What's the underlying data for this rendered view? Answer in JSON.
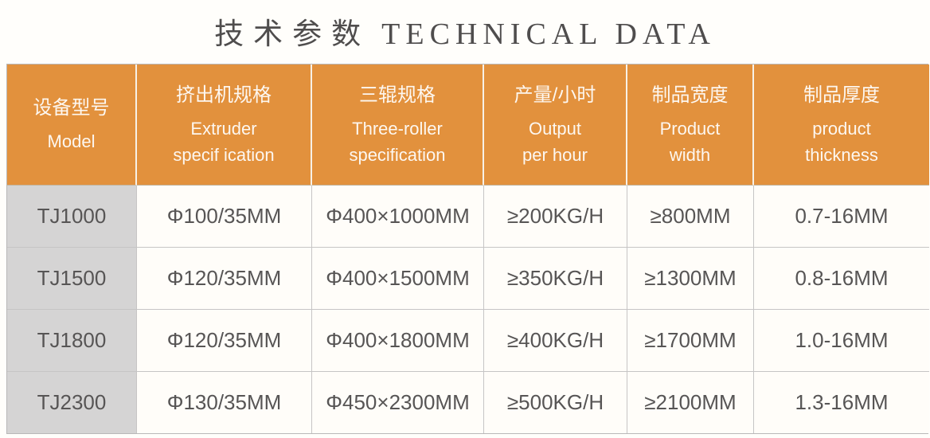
{
  "title": {
    "zh": "技术参数",
    "en": "TECHNICAL DATA"
  },
  "table": {
    "headers": [
      {
        "zh": "设备型号",
        "en_lines": [
          "Model"
        ]
      },
      {
        "zh": "挤出机规格",
        "en_lines": [
          "Extruder",
          "specif ication"
        ]
      },
      {
        "zh": "三辊规格",
        "en_lines": [
          "Three-roller",
          "specification"
        ]
      },
      {
        "zh": "产量/小时",
        "en_lines": [
          "Output",
          "per hour"
        ]
      },
      {
        "zh": "制品宽度",
        "en_lines": [
          "Product",
          "width"
        ]
      },
      {
        "zh": "制品厚度",
        "en_lines": [
          "product",
          "thickness"
        ]
      }
    ],
    "rows": [
      [
        "TJ1000",
        "Φ100/35MM",
        "Φ400×1000MM",
        "≥200KG/H",
        "≥800MM",
        "0.7-16MM"
      ],
      [
        "TJ1500",
        "Φ120/35MM",
        "Φ400×1500MM",
        "≥350KG/H",
        "≥1300MM",
        "0.8-16MM"
      ],
      [
        "TJ1800",
        "Φ120/35MM",
        "Φ400×1800MM",
        "≥400KG/H",
        "≥1700MM",
        "1.0-16MM"
      ],
      [
        "TJ2300",
        "Φ130/35MM",
        "Φ450×2300MM",
        "≥500KG/H",
        "≥2100MM",
        "1.3-16MM"
      ]
    ]
  },
  "colors": {
    "header_orange": "#e2913d",
    "model_column_gray": "#d5d4d4",
    "data_text": "#575555",
    "title_text": "#4f4d4d",
    "grid_border": "#c6c5c5",
    "page_background": "#fffefb"
  }
}
